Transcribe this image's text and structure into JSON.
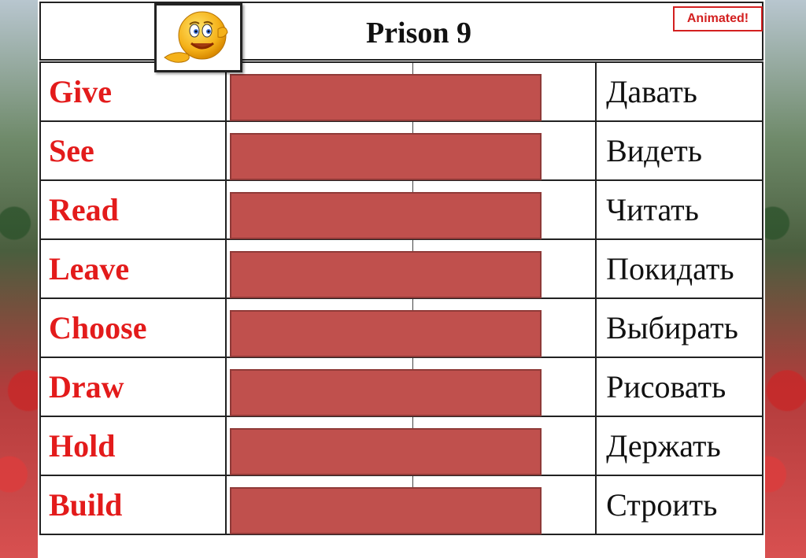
{
  "title": "Prison 9",
  "badge": "Animated!",
  "rows": [
    {
      "english": "Give",
      "russian": "Давать"
    },
    {
      "english": "See",
      "russian": "Видеть"
    },
    {
      "english": "Read",
      "russian": "Читать"
    },
    {
      "english": "Leave",
      "russian": "Покидать"
    },
    {
      "english": "Choose",
      "russian": "Выбирать"
    },
    {
      "english": "Draw",
      "russian": "Рисовать"
    },
    {
      "english": "Hold",
      "russian": "Держать"
    },
    {
      "english": "Build",
      "russian": "Строить"
    }
  ],
  "colors": {
    "english": "#e31b1b",
    "cover": "#c0504d",
    "badge": "#d32020"
  },
  "icon": "smiley-pointing-icon"
}
